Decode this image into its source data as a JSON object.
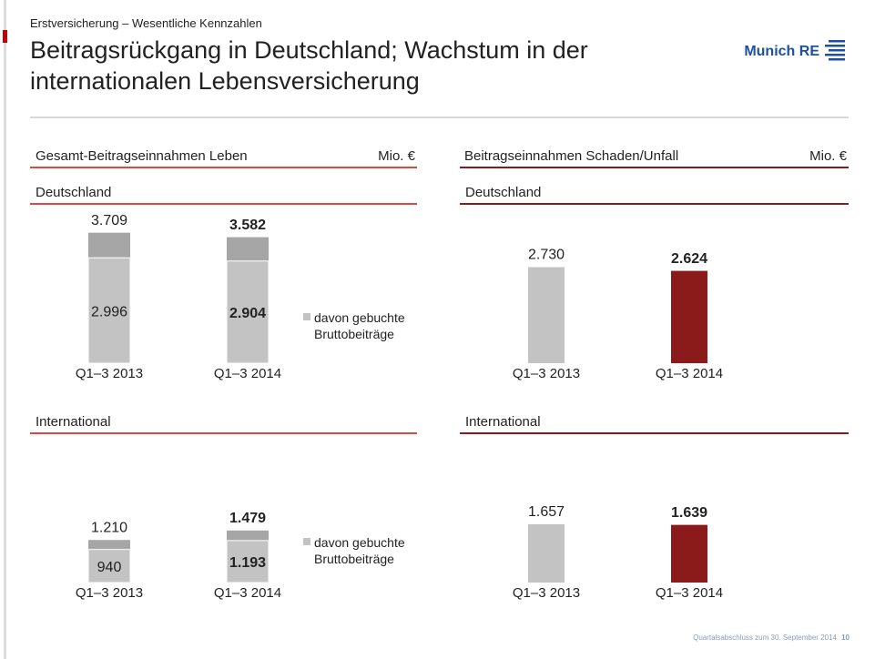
{
  "header": {
    "kicker": "Erstversicherung – Wesentliche Kennzahlen",
    "title": "Beitragsrückgang in Deutschland; Wachstum in der internationalen Lebensversicherung",
    "logo": "Munich RE"
  },
  "sections": [
    {
      "title": "Gesamt-Beitragseinnahmen Leben",
      "unit": "Mio. €"
    },
    {
      "title": "Beitragseinnahmen Schaden/Unfall",
      "unit": "Mio. €"
    }
  ],
  "chart_data": [
    {
      "type": "overlap",
      "title": "Deutschland",
      "categories": [
        "Q1–3 2013",
        "Q1–3 2014"
      ],
      "series": [
        {
          "color": "#a6a6a6",
          "values": [
            3709,
            3582
          ],
          "value_labels": [
            "3.709",
            "3.582"
          ]
        },
        {
          "name": "davon gebuchte Bruttobeiträge",
          "color": "#c3c3c3",
          "values": [
            2996,
            2904
          ],
          "value_labels": [
            "2.996",
            "2.904"
          ]
        }
      ],
      "ylim": [
        0,
        3700
      ]
    },
    {
      "type": "bar",
      "title": "Deutschland",
      "categories": [
        "Q1–3 2013",
        "Q1–3 2014"
      ],
      "values": [
        2730,
        2624
      ],
      "value_labels": [
        "2.730",
        "2.624"
      ],
      "colors": [
        "#c3c3c3",
        "#8b1a1a"
      ],
      "ylim": [
        0,
        3700
      ]
    },
    {
      "type": "overlap",
      "title": "International",
      "categories": [
        "Q1–3 2013",
        "Q1–3 2014"
      ],
      "series": [
        {
          "color": "#a6a6a6",
          "values": [
            1210,
            1479
          ],
          "value_labels": [
            "1.210",
            "1.479"
          ]
        },
        {
          "name": "davon gebuchte Bruttobeiträge",
          "color": "#c3c3c3",
          "values": [
            940,
            1193
          ],
          "value_labels": [
            "940",
            "1.193"
          ]
        }
      ],
      "ylim": [
        0,
        3700
      ]
    },
    {
      "type": "bar",
      "title": "International",
      "categories": [
        "Q1–3 2013",
        "Q1–3 2014"
      ],
      "values": [
        1657,
        1639
      ],
      "value_labels": [
        "1.657",
        "1.639"
      ],
      "colors": [
        "#c3c3c3",
        "#8b1a1a"
      ],
      "ylim": [
        0,
        3700
      ]
    }
  ],
  "footer": {
    "text": "Quartalsabschluss zum 30. September 2014",
    "page": "10"
  }
}
